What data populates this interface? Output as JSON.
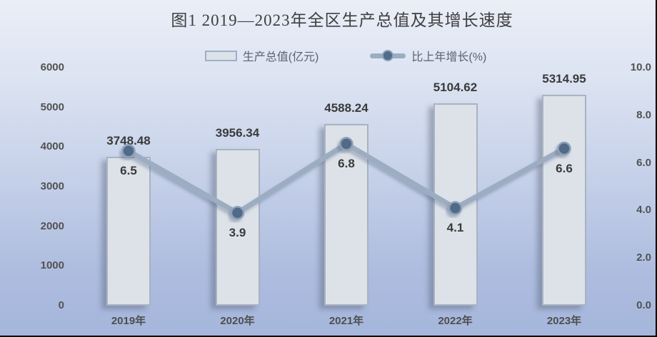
{
  "title": "图1 2019—2023年全区生产总值及其增长速度",
  "legend": {
    "items": [
      {
        "label": "生产总值(亿元)",
        "marker": "bar-swatch"
      },
      {
        "label": "比上年增长(%)",
        "marker": "line-dot-swatch"
      }
    ]
  },
  "chart_data": {
    "type": "bar",
    "subtype": "combo-bar-line-dual-axis",
    "title": "图1 2019—2023年全区生产总值及其增长速度",
    "categories": [
      "2019年",
      "2020年",
      "2021年",
      "2022年",
      "2023年"
    ],
    "series": [
      {
        "name": "生产总值(亿元)",
        "type": "bar",
        "axis": "left",
        "values": [
          3748.48,
          3956.34,
          4588.24,
          5104.62,
          5314.95
        ]
      },
      {
        "name": "比上年增长(%)",
        "type": "line",
        "axis": "right",
        "values": [
          6.5,
          3.9,
          6.8,
          4.1,
          6.6
        ]
      }
    ],
    "left_axis": {
      "min": 0,
      "max": 6000,
      "step": 1000,
      "ticks": [
        "6000",
        "5000",
        "4000",
        "3000",
        "2000",
        "1000",
        "0"
      ]
    },
    "right_axis": {
      "min": 0,
      "max": 10,
      "step": 2,
      "ticks": [
        "10.0",
        "8.0",
        "6.0",
        "4.0",
        "2.0",
        "0.0"
      ]
    },
    "grid": false,
    "legend_position": "top",
    "data_labels": true
  },
  "colors": {
    "background_top": "#eaeef7",
    "background_bottom": "#a5b6dc",
    "bar_fill": "#dde2e9",
    "bar_border": "#a9b3c1",
    "line": "#9cadc2",
    "marker_fill": "#516b88",
    "marker_ring": "#8ea1b8",
    "title_text": "#3f3f3f",
    "tick_text": "#525252",
    "label_text": "#3a3a3a"
  }
}
